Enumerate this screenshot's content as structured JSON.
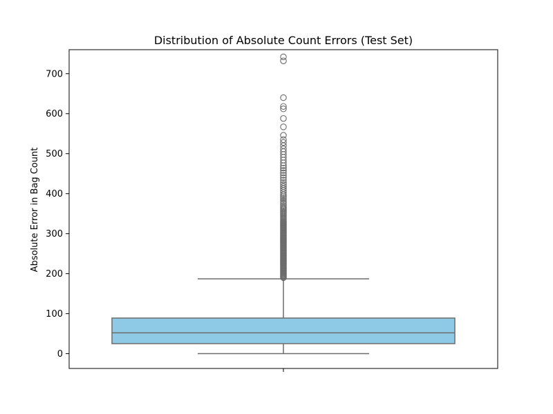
{
  "chart_data": {
    "type": "box",
    "title": "Distribution of Absolute Count Errors (Test Set)",
    "xlabel": "",
    "ylabel": "Absolute Error in Bag Count",
    "ylim": [
      -37,
      760
    ],
    "yticks": [
      0,
      100,
      200,
      300,
      400,
      500,
      600,
      700
    ],
    "grid": false,
    "box": {
      "min": 0,
      "q1": 25,
      "median": 52,
      "q3": 89,
      "whisker_high": 187,
      "color": "#8ecae6",
      "line_color": "#6b6b6b"
    },
    "outliers": [
      190,
      192,
      194,
      196,
      198,
      200,
      202,
      204,
      206,
      208,
      210,
      212,
      214,
      216,
      218,
      220,
      222,
      224,
      226,
      228,
      230,
      232,
      234,
      236,
      238,
      240,
      242,
      244,
      246,
      248,
      250,
      252,
      254,
      256,
      258,
      260,
      262,
      264,
      266,
      268,
      270,
      272,
      274,
      276,
      278,
      280,
      282,
      284,
      286,
      288,
      290,
      292,
      294,
      296,
      298,
      300,
      302,
      304,
      306,
      308,
      310,
      312,
      314,
      316,
      318,
      320,
      322,
      324,
      326,
      328,
      330,
      333,
      336,
      339,
      342,
      345,
      348,
      351,
      354,
      357,
      360,
      363,
      366,
      370,
      374,
      378,
      382,
      386,
      390,
      394,
      398,
      403,
      408,
      413,
      418,
      423,
      428,
      434,
      440,
      446,
      452,
      458,
      464,
      470,
      477,
      484,
      491,
      498,
      505,
      512,
      520,
      528,
      535,
      546,
      567,
      588,
      612,
      618,
      640,
      732,
      742
    ]
  }
}
